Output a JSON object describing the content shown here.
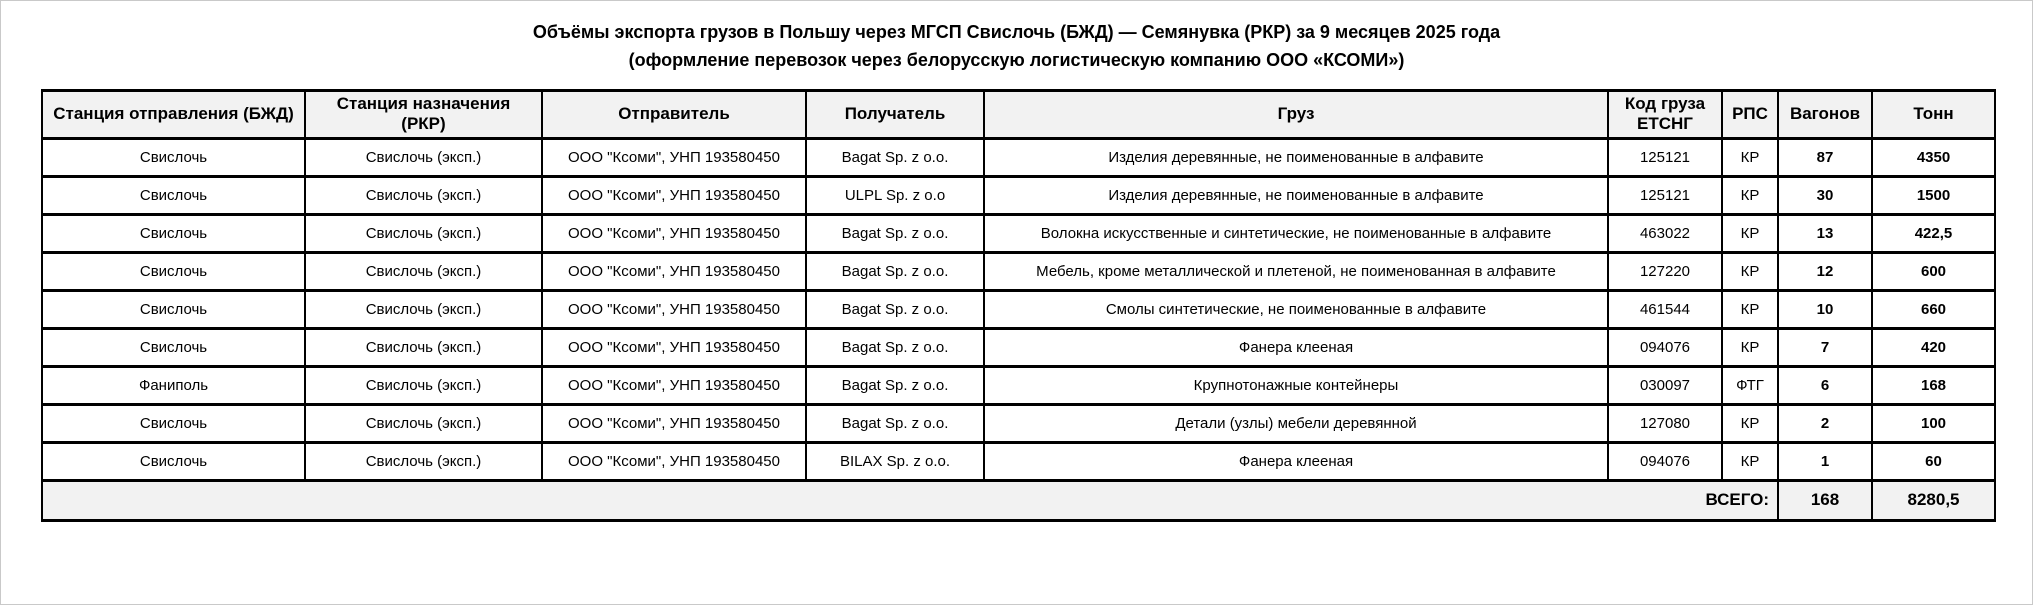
{
  "title": {
    "line1": "Объёмы экспорта грузов в Польшу через МГСП Свислочь (БЖД) — Семянувка (РКР) за 9 месяцев 2025 года",
    "line2": "(оформление перевозок через белорусскую логистическую компанию ООО «КСОМИ»)"
  },
  "table": {
    "columns": [
      "Станция отправления (БЖД)",
      "Станция назначения (РКР)",
      "Отправитель",
      "Получатель",
      "Груз",
      "Код груза ЕТСНГ",
      "РПС",
      "Вагонов",
      "Тонн"
    ],
    "column_keys": [
      "departure-station",
      "destination-station",
      "sender",
      "receiver",
      "cargo",
      "cargo-code-etsng",
      "rps",
      "wagons",
      "tons"
    ],
    "rows": [
      [
        "Свислочь",
        "Свислочь (эксп.)",
        "ООО \"Ксоми\", УНП 193580450",
        "Bagat Sp. z o.o.",
        "Изделия деревянные, не поименованные в алфавите",
        "125121",
        "КР",
        "87",
        "4350"
      ],
      [
        "Свислочь",
        "Свислочь (эксп.)",
        "ООО \"Ксоми\", УНП 193580450",
        "ULPL Sp. z o.o",
        "Изделия деревянные, не поименованные в алфавите",
        "125121",
        "КР",
        "30",
        "1500"
      ],
      [
        "Свислочь",
        "Свислочь (эксп.)",
        "ООО \"Ксоми\", УНП 193580450",
        "Bagat Sp. z o.o.",
        "Волокна искусственные и синтетические, не поименованные в алфавите",
        "463022",
        "КР",
        "13",
        "422,5"
      ],
      [
        "Свислочь",
        "Свислочь (эксп.)",
        "ООО \"Ксоми\", УНП 193580450",
        "Bagat Sp. z o.o.",
        "Мебель, кроме металлической и плетеной, не поименованная в алфавите",
        "127220",
        "КР",
        "12",
        "600"
      ],
      [
        "Свислочь",
        "Свислочь (эксп.)",
        "ООО \"Ксоми\", УНП 193580450",
        "Bagat Sp. z o.o.",
        "Смолы синтетические, не поименованные в алфавите",
        "461544",
        "КР",
        "10",
        "660"
      ],
      [
        "Свислочь",
        "Свислочь (эксп.)",
        "ООО \"Ксоми\", УНП 193580450",
        "Bagat Sp. z o.o.",
        "Фанера клееная",
        "094076",
        "КР",
        "7",
        "420"
      ],
      [
        "Фаниполь",
        "Свислочь (эксп.)",
        "ООО \"Ксоми\", УНП 193580450",
        "Bagat Sp. z o.o.",
        "Крупнотонажные контейнеры",
        "030097",
        "ФТГ",
        "6",
        "168"
      ],
      [
        "Свислочь",
        "Свислочь (эксп.)",
        "ООО \"Ксоми\", УНП 193580450",
        "Bagat Sp. z o.o.",
        "Детали (узлы) мебели деревянной",
        "127080",
        "КР",
        "2",
        "100"
      ],
      [
        "Свислочь",
        "Свислочь (эксп.)",
        "ООО \"Ксоми\", УНП 193580450",
        "BILAX Sp. z o.o.",
        "Фанера клееная",
        "094076",
        "КР",
        "1",
        "60"
      ]
    ],
    "total": {
      "label": "ВСЕГО:",
      "wagons": "168",
      "tons": "8280,5"
    }
  },
  "colors": {
    "header_background": "#f2f2f2",
    "total_row_background": "#f2f2f2",
    "border": "#000000",
    "text": "#000000",
    "page_background": "#ffffff"
  }
}
